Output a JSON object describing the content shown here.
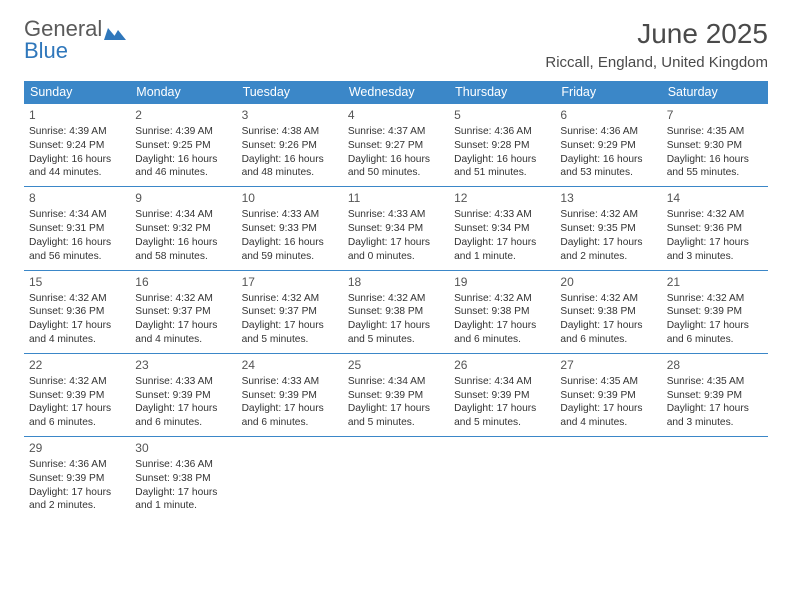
{
  "logo": {
    "text1": "General",
    "text2": "Blue"
  },
  "header": {
    "title": "June 2025",
    "location": "Riccall, England, United Kingdom"
  },
  "style": {
    "header_bg": "#3b87c8",
    "header_fg": "#ffffff",
    "border_color": "#3b87c8",
    "title_color": "#4a4a4a",
    "text_color": "#333333",
    "page_bg": "#ffffff",
    "title_fontsize": 28,
    "location_fontsize": 15,
    "dayhead_fontsize": 12.5,
    "cell_fontsize": 10.2
  },
  "daynames": [
    "Sunday",
    "Monday",
    "Tuesday",
    "Wednesday",
    "Thursday",
    "Friday",
    "Saturday"
  ],
  "weeks": [
    [
      {
        "n": "1",
        "sr": "4:39 AM",
        "ss": "9:24 PM",
        "dl": "16 hours and 44 minutes."
      },
      {
        "n": "2",
        "sr": "4:39 AM",
        "ss": "9:25 PM",
        "dl": "16 hours and 46 minutes."
      },
      {
        "n": "3",
        "sr": "4:38 AM",
        "ss": "9:26 PM",
        "dl": "16 hours and 48 minutes."
      },
      {
        "n": "4",
        "sr": "4:37 AM",
        "ss": "9:27 PM",
        "dl": "16 hours and 50 minutes."
      },
      {
        "n": "5",
        "sr": "4:36 AM",
        "ss": "9:28 PM",
        "dl": "16 hours and 51 minutes."
      },
      {
        "n": "6",
        "sr": "4:36 AM",
        "ss": "9:29 PM",
        "dl": "16 hours and 53 minutes."
      },
      {
        "n": "7",
        "sr": "4:35 AM",
        "ss": "9:30 PM",
        "dl": "16 hours and 55 minutes."
      }
    ],
    [
      {
        "n": "8",
        "sr": "4:34 AM",
        "ss": "9:31 PM",
        "dl": "16 hours and 56 minutes."
      },
      {
        "n": "9",
        "sr": "4:34 AM",
        "ss": "9:32 PM",
        "dl": "16 hours and 58 minutes."
      },
      {
        "n": "10",
        "sr": "4:33 AM",
        "ss": "9:33 PM",
        "dl": "16 hours and 59 minutes."
      },
      {
        "n": "11",
        "sr": "4:33 AM",
        "ss": "9:34 PM",
        "dl": "17 hours and 0 minutes."
      },
      {
        "n": "12",
        "sr": "4:33 AM",
        "ss": "9:34 PM",
        "dl": "17 hours and 1 minute."
      },
      {
        "n": "13",
        "sr": "4:32 AM",
        "ss": "9:35 PM",
        "dl": "17 hours and 2 minutes."
      },
      {
        "n": "14",
        "sr": "4:32 AM",
        "ss": "9:36 PM",
        "dl": "17 hours and 3 minutes."
      }
    ],
    [
      {
        "n": "15",
        "sr": "4:32 AM",
        "ss": "9:36 PM",
        "dl": "17 hours and 4 minutes."
      },
      {
        "n": "16",
        "sr": "4:32 AM",
        "ss": "9:37 PM",
        "dl": "17 hours and 4 minutes."
      },
      {
        "n": "17",
        "sr": "4:32 AM",
        "ss": "9:37 PM",
        "dl": "17 hours and 5 minutes."
      },
      {
        "n": "18",
        "sr": "4:32 AM",
        "ss": "9:38 PM",
        "dl": "17 hours and 5 minutes."
      },
      {
        "n": "19",
        "sr": "4:32 AM",
        "ss": "9:38 PM",
        "dl": "17 hours and 6 minutes."
      },
      {
        "n": "20",
        "sr": "4:32 AM",
        "ss": "9:38 PM",
        "dl": "17 hours and 6 minutes."
      },
      {
        "n": "21",
        "sr": "4:32 AM",
        "ss": "9:39 PM",
        "dl": "17 hours and 6 minutes."
      }
    ],
    [
      {
        "n": "22",
        "sr": "4:32 AM",
        "ss": "9:39 PM",
        "dl": "17 hours and 6 minutes."
      },
      {
        "n": "23",
        "sr": "4:33 AM",
        "ss": "9:39 PM",
        "dl": "17 hours and 6 minutes."
      },
      {
        "n": "24",
        "sr": "4:33 AM",
        "ss": "9:39 PM",
        "dl": "17 hours and 6 minutes."
      },
      {
        "n": "25",
        "sr": "4:34 AM",
        "ss": "9:39 PM",
        "dl": "17 hours and 5 minutes."
      },
      {
        "n": "26",
        "sr": "4:34 AM",
        "ss": "9:39 PM",
        "dl": "17 hours and 5 minutes."
      },
      {
        "n": "27",
        "sr": "4:35 AM",
        "ss": "9:39 PM",
        "dl": "17 hours and 4 minutes."
      },
      {
        "n": "28",
        "sr": "4:35 AM",
        "ss": "9:39 PM",
        "dl": "17 hours and 3 minutes."
      }
    ],
    [
      {
        "n": "29",
        "sr": "4:36 AM",
        "ss": "9:39 PM",
        "dl": "17 hours and 2 minutes."
      },
      {
        "n": "30",
        "sr": "4:36 AM",
        "ss": "9:38 PM",
        "dl": "17 hours and 1 minute."
      },
      null,
      null,
      null,
      null,
      null
    ]
  ],
  "labels": {
    "sunrise": "Sunrise: ",
    "sunset": "Sunset: ",
    "daylight": "Daylight: "
  }
}
